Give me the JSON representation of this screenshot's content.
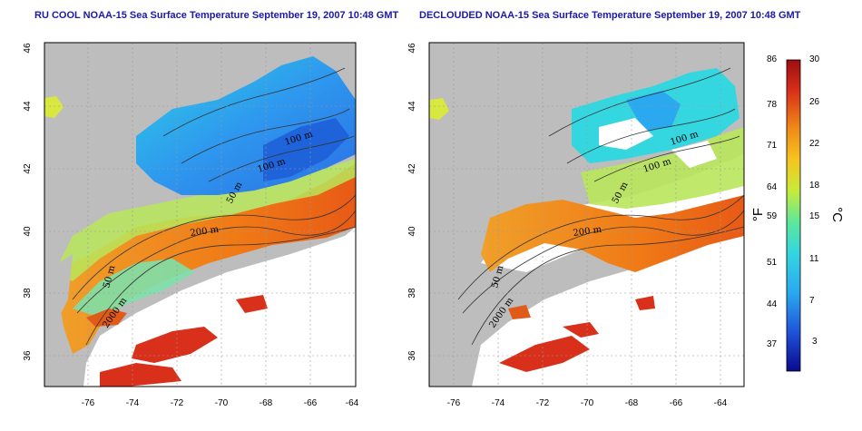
{
  "maps": {
    "left": {
      "title": "RU COOL NOAA-15 Sea Surface Temperature September 19, 2007 10:48 GMT"
    },
    "right": {
      "title": "DECLOUDED NOAA-15 Sea Surface Temperature September 19, 2007 10:48 GMT"
    },
    "lat_ticks": [
      "46",
      "44",
      "42",
      "40",
      "38",
      "36"
    ],
    "lon_ticks": [
      "-76",
      "-74",
      "-72",
      "-70",
      "-68",
      "-66",
      "-64"
    ],
    "contour_labels": [
      "100 m",
      "100 m",
      "50 m",
      "200 m",
      "50 m",
      "2000 m"
    ]
  },
  "colorbar": {
    "fahrenheit_ticks": [
      "86",
      "78",
      "71",
      "64",
      "59",
      "51",
      "44",
      "37"
    ],
    "celsius_ticks": [
      "30",
      "26",
      "22",
      "18",
      "15",
      "11",
      "7",
      "3"
    ],
    "fahrenheit_unit": "°F",
    "celsius_unit": "°C",
    "colors": [
      "#0a0a8c",
      "#1e4fd8",
      "#2aa8f0",
      "#34d6e0",
      "#5ee89a",
      "#c8ea3a",
      "#f6c420",
      "#f08a18",
      "#d8301a",
      "#9c0d10"
    ]
  }
}
